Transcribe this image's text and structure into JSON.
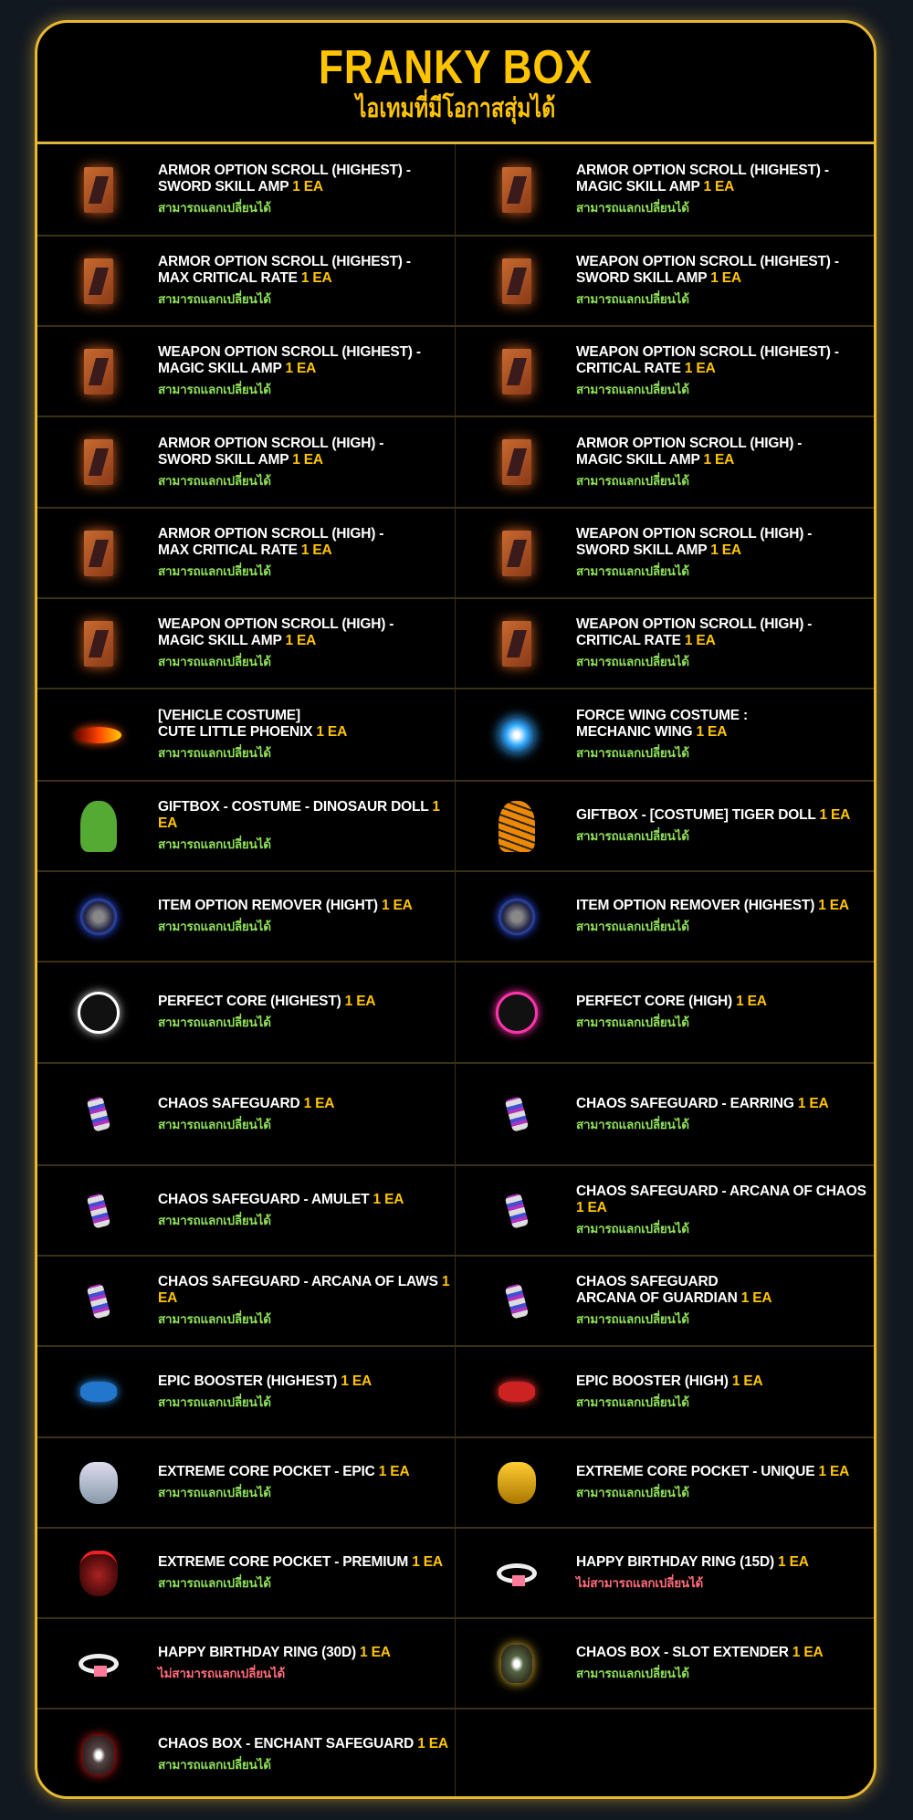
{
  "header": {
    "title": "FRANKY BOX",
    "subtitle": "ไอเทมที่มีโอกาสสุ่มได้"
  },
  "status": {
    "tradable": "สามารถแลกเปลี่ยนได้",
    "untradable": "ไม่สามารถแลกเปลี่ยนได้"
  },
  "colors": {
    "accent": "#ffc400",
    "tradable": "#8ee05a",
    "untradable": "#ff6b7a",
    "border": "#e8b830"
  },
  "items": [
    {
      "l1": "ARMOR OPTION SCROLL (HIGHEST) -",
      "l2": "SWORD SKILL AMP",
      "qty": "1 EA",
      "status": "สามารถแลกเปลี่ยนได้",
      "ok": true,
      "icon": "armor-scroll-icon"
    },
    {
      "l1": "ARMOR OPTION SCROLL (HIGHEST) -",
      "l2": "MAGIC SKILL AMP",
      "qty": "1 EA",
      "status": "สามารถแลกเปลี่ยนได้",
      "ok": true,
      "icon": "armor-scroll-icon"
    },
    {
      "l1": "ARMOR OPTION SCROLL (HIGHEST) -",
      "l2": "MAX CRITICAL RATE",
      "qty": "1 EA",
      "status": "สามารถแลกเปลี่ยนได้",
      "ok": true,
      "icon": "armor-scroll-icon"
    },
    {
      "l1": "WEAPON OPTION SCROLL (HIGHEST) -",
      "l2": "SWORD SKILL AMP",
      "qty": "1 EA",
      "status": "สามารถแลกเปลี่ยนได้",
      "ok": true,
      "icon": "weapon-scroll-icon"
    },
    {
      "l1": "WEAPON OPTION SCROLL (HIGHEST) -",
      "l2": "MAGIC SKILL AMP",
      "qty": "1 EA",
      "status": "สามารถแลกเปลี่ยนได้",
      "ok": true,
      "icon": "weapon-scroll-icon"
    },
    {
      "l1": "WEAPON OPTION SCROLL (HIGHEST) -",
      "l2": "CRITICAL RATE",
      "qty": "1 EA",
      "status": "สามารถแลกเปลี่ยนได้",
      "ok": true,
      "icon": "weapon-scroll-icon"
    },
    {
      "l1": "ARMOR OPTION SCROLL (HIGH) -",
      "l2": "SWORD SKILL AMP",
      "qty": "1 EA",
      "status": "สามารถแลกเปลี่ยนได้",
      "ok": true,
      "icon": "armor-scroll-icon"
    },
    {
      "l1": "ARMOR OPTION SCROLL (HIGH) -",
      "l2": "MAGIC SKILL AMP",
      "qty": "1 EA",
      "status": "สามารถแลกเปลี่ยนได้",
      "ok": true,
      "icon": "armor-scroll-icon"
    },
    {
      "l1": "ARMOR OPTION SCROLL (HIGH) -",
      "l2": "MAX CRITICAL RATE",
      "qty": "1 EA",
      "status": "สามารถแลกเปลี่ยนได้",
      "ok": true,
      "icon": "armor-scroll-icon"
    },
    {
      "l1": "WEAPON OPTION SCROLL (HIGH) -",
      "l2": "SWORD SKILL AMP",
      "qty": "1 EA",
      "status": "สามารถแลกเปลี่ยนได้",
      "ok": true,
      "icon": "weapon-scroll-icon"
    },
    {
      "l1": "WEAPON OPTION SCROLL (HIGH) -",
      "l2": "MAGIC SKILL AMP",
      "qty": "1 EA",
      "status": "สามารถแลกเปลี่ยนได้",
      "ok": true,
      "icon": "weapon-scroll-icon"
    },
    {
      "l1": "WEAPON OPTION SCROLL (HIGH) -",
      "l2": "CRITICAL RATE",
      "qty": "1 EA",
      "status": "สามารถแลกเปลี่ยนได้",
      "ok": true,
      "icon": "weapon-scroll-icon"
    },
    {
      "l1": "[VEHICLE COSTUME]",
      "l2": "CUTE LITTLE PHOENIX",
      "qty": "1 EA",
      "status": "สามารถแลกเปลี่ยนได้",
      "ok": true,
      "icon": "phoenix-icon"
    },
    {
      "l1": "FORCE WING COSTUME :",
      "l2": "MECHANIC WING",
      "qty": "1 EA",
      "status": "สามารถแลกเปลี่ยนได้",
      "ok": true,
      "icon": "wing-icon"
    },
    {
      "l1": "",
      "l2": "GIFTBOX - COSTUME - DINOSAUR DOLL",
      "qty": "1 EA",
      "status": "สามารถแลกเปลี่ยนได้",
      "ok": true,
      "icon": "dinosaur-doll-icon"
    },
    {
      "l1": "",
      "l2": "GIFTBOX - [COSTUME] TIGER DOLL",
      "qty": "1 EA",
      "status": "สามารถแลกเปลี่ยนได้",
      "ok": true,
      "icon": "tiger-doll-icon"
    },
    {
      "l1": "",
      "l2": "ITEM OPTION REMOVER (HIGHT)",
      "qty": "1 EA",
      "status": "สามารถแลกเปลี่ยนได้",
      "ok": true,
      "icon": "option-remover-icon"
    },
    {
      "l1": "",
      "l2": "ITEM OPTION REMOVER (HIGHEST)",
      "qty": "1 EA",
      "status": "สามารถแลกเปลี่ยนได้",
      "ok": true,
      "icon": "option-remover-icon"
    },
    {
      "l1": "",
      "l2": "PERFECT CORE (HIGHEST)",
      "qty": "1 EA",
      "status": "สามารถแลกเปลี่ยนได้",
      "ok": true,
      "icon": "perfect-core-icon"
    },
    {
      "l1": "",
      "l2": "PERFECT CORE (HIGH)",
      "qty": "1 EA",
      "status": "สามารถแลกเปลี่ยนได้",
      "ok": true,
      "icon": "perfect-core-pink-icon"
    },
    {
      "l1": "",
      "l2": "CHAOS SAFEGUARD",
      "qty": "1 EA",
      "status": "สามารถแลกเปลี่ยนได้",
      "ok": true,
      "icon": "safeguard-icon"
    },
    {
      "l1": "",
      "l2": "CHAOS SAFEGUARD - EARRING",
      "qty": "1 EA",
      "status": "สามารถแลกเปลี่ยนได้",
      "ok": true,
      "icon": "safeguard-icon"
    },
    {
      "l1": "",
      "l2": "CHAOS SAFEGUARD - AMULET",
      "qty": "1 EA",
      "status": "สามารถแลกเปลี่ยนได้",
      "ok": true,
      "icon": "safeguard-icon"
    },
    {
      "l1": "",
      "l2": "CHAOS SAFEGUARD - ARCANA OF CHAOS",
      "qty": "1 EA",
      "status": "สามารถแลกเปลี่ยนได้",
      "ok": true,
      "icon": "safeguard-icon"
    },
    {
      "l1": "",
      "l2": "CHAOS SAFEGUARD - ARCANA OF LAWS",
      "qty": "1 EA",
      "status": "สามารถแลกเปลี่ยนได้",
      "ok": true,
      "icon": "safeguard-icon"
    },
    {
      "l1": "CHAOS SAFEGUARD",
      "l2": "ARCANA OF GUARDIAN",
      "qty": "1 EA",
      "status": "สามารถแลกเปลี่ยนได้",
      "ok": true,
      "icon": "safeguard-icon"
    },
    {
      "l1": "",
      "l2": "EPIC BOOSTER (HIGHEST)",
      "qty": "1 EA",
      "status": "สามารถแลกเปลี่ยนได้",
      "ok": true,
      "icon": "epic-booster-blue-icon"
    },
    {
      "l1": "",
      "l2": "EPIC BOOSTER (HIGH)",
      "qty": "1 EA",
      "status": "สามารถแลกเปลี่ยนได้",
      "ok": true,
      "icon": "epic-booster-red-icon"
    },
    {
      "l1": "",
      "l2": "EXTREME CORE POCKET - EPIC",
      "qty": "1 EA",
      "status": "สามารถแลกเปลี่ยนได้",
      "ok": true,
      "icon": "pocket-silver-icon"
    },
    {
      "l1": "",
      "l2": "EXTREME CORE POCKET - UNIQUE",
      "qty": "1 EA",
      "status": "สามารถแลกเปลี่ยนได้",
      "ok": true,
      "icon": "pocket-gold-icon"
    },
    {
      "l1": "",
      "l2": "EXTREME CORE POCKET - PREMIUM",
      "qty": "1 EA",
      "status": "สามารถแลกเปลี่ยนได้",
      "ok": true,
      "icon": "pocket-premium-icon"
    },
    {
      "l1": "",
      "l2": "HAPPY BIRTHDAY RING (15D)",
      "qty": "1 EA",
      "status": "ไม่สามารถแลกเปลี่ยนได้",
      "ok": false,
      "icon": "ring-icon"
    },
    {
      "l1": "",
      "l2": "HAPPY BIRTHDAY RING (30D)",
      "qty": "1 EA",
      "status": "ไม่สามารถแลกเปลี่ยนได้",
      "ok": false,
      "icon": "ring-icon"
    },
    {
      "l1": "",
      "l2": "CHAOS BOX - SLOT EXTENDER",
      "qty": "1 EA",
      "status": "สามารถแลกเปลี่ยนได้",
      "ok": true,
      "icon": "chaos-box-gold-icon"
    },
    {
      "l1": "",
      "l2": "CHAOS BOX - ENCHANT SAFEGUARD",
      "qty": "1 EA",
      "status": "สามารถแลกเปลี่ยนได้",
      "ok": true,
      "icon": "chaos-box-red-icon"
    }
  ]
}
